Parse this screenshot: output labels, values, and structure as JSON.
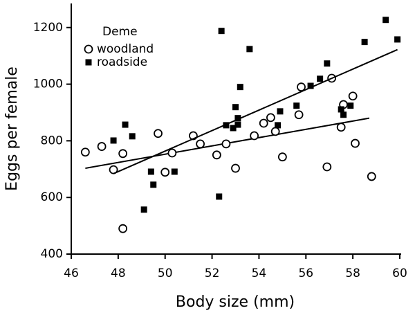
{
  "chart_data": {
    "type": "scatter",
    "xlabel": "Body size (mm)",
    "ylabel": "Eggs per female",
    "xlim": [
      46,
      60
    ],
    "xticks": [
      46,
      48,
      50,
      52,
      54,
      56,
      58,
      60
    ],
    "ylim": [
      400,
      1285
    ],
    "yticks": [
      400,
      600,
      800,
      1000,
      1200
    ],
    "legend_title": "Deme",
    "legend_position": "upper left",
    "series": [
      {
        "name": "woodland",
        "marker": "open-circle",
        "color": "#000000",
        "x": [
          46.6,
          47.3,
          47.8,
          48.2,
          48.2,
          49.7,
          50.0,
          50.3,
          51.2,
          51.5,
          52.2,
          52.6,
          53.0,
          53.8,
          54.2,
          54.5,
          54.7,
          55.0,
          55.7,
          55.8,
          56.9,
          57.1,
          57.5,
          57.6,
          58.0,
          58.1,
          58.8
        ],
        "values": [
          760,
          780,
          698,
          755,
          490,
          826,
          689,
          757,
          818,
          789,
          750,
          789,
          703,
          818,
          862,
          882,
          833,
          743,
          892,
          990,
          708,
          1021,
          848,
          928,
          958,
          791,
          674
        ],
        "trend": {
          "x": [
            46.6,
            58.7
          ],
          "y": [
            703,
            880
          ]
        }
      },
      {
        "name": "roadside",
        "marker": "filled-square",
        "color": "#000000",
        "x": [
          47.8,
          48.3,
          48.6,
          49.1,
          49.4,
          49.5,
          50.4,
          52.3,
          52.4,
          52.6,
          52.9,
          53.0,
          53.1,
          53.1,
          53.2,
          53.6,
          54.8,
          54.9,
          55.6,
          56.2,
          56.6,
          56.9,
          57.5,
          57.6,
          57.9,
          58.5,
          59.4,
          59.9
        ],
        "values": [
          801,
          857,
          816,
          557,
          691,
          645,
          691,
          603,
          1188,
          855,
          845,
          919,
          857,
          880,
          990,
          1124,
          855,
          904,
          924,
          994,
          1019,
          1073,
          911,
          892,
          924,
          1149,
          1227,
          1158
        ],
        "trend": {
          "x": [
            47.8,
            59.9
          ],
          "y": [
            684,
            1122
          ]
        }
      }
    ]
  }
}
